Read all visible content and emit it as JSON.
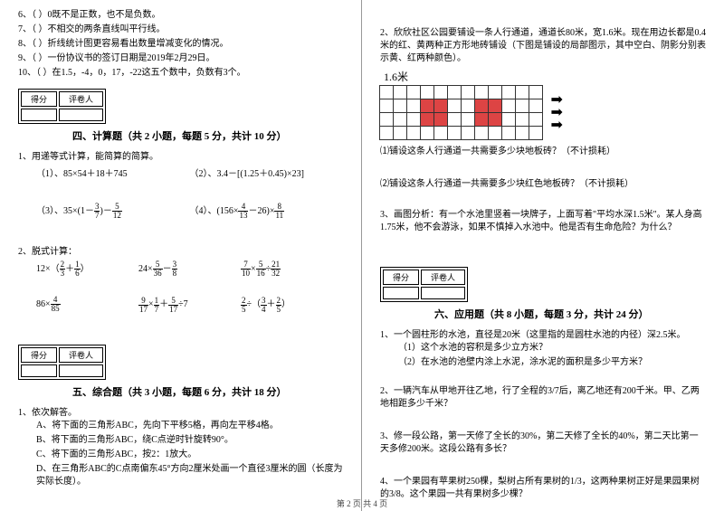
{
  "left": {
    "tf": [
      {
        "n": "6",
        "t": "（    ）0既不是正数，也不是负数。"
      },
      {
        "n": "7",
        "t": "（    ）不相交的两条直线叫平行线。"
      },
      {
        "n": "8",
        "t": "（    ）折线统计图更容易看出数量增减变化的情况。"
      },
      {
        "n": "9",
        "t": "（    ）一份协议书的签订日期是2019年2月29日。"
      },
      {
        "n": "10",
        "t": "（    ）在1.5，-4，0，17，-22这五个数中，负数有3个。"
      }
    ],
    "score_a": "得分",
    "score_b": "评卷人",
    "sec4": "四、计算题（共 2 小题，每题 5 分，共计 10 分）",
    "p1": "1、用递等式计算，能简算的简算。",
    "c1": "（1）、85×54＋18＋745",
    "c2": "（2）、3.4－[(1.25＋0.45)×23]",
    "p2": "2、脱式计算：",
    "sec5": "五、综合题（共 3 小题，每题 6 分，共计 18 分）",
    "q1": "1、依次解答。",
    "qa": "A、将下面的三角形ABC，先向下平移5格，再向左平移4格。",
    "qb": "B、将下面的三角形ABC，绕C点逆时针旋转90°。",
    "qc": "C、将下面的三角形ABC，按2：1放大。",
    "qd": "D、在三角形ABC的C点南偏东45°方向2厘米处画一个直径3厘米的圆（长度为实际长度）。"
  },
  "right": {
    "p2": "2、欣欣社区公园要铺设一条人行通道，通道长80米，宽1.6米。现在用边长都是0.4米的红、黄两种正方形地砖铺设（下图是铺设的局部图示，其中空白、阴影分别表示黄、红两种颜色）。",
    "lbl": "1.6米",
    "q2a": "⑴铺设这条人行通道一共需要多少块地板砖？（不计损耗）",
    "q2b": "⑵铺设这条人行通道一共需要多少块红色地板砖？（不计损耗）",
    "p3": "3、画图分析：有一个水池里竖着一块牌子，上面写着\"平均水深1.5米\"。某人身高1.75米，他不会游泳，如果不慎掉入水池中。他是否有生命危险？为什么？",
    "score_a": "得分",
    "score_b": "评卷人",
    "sec6": "六、应用题（共 8 小题，每题 3 分，共计 24 分）",
    "a1": "1、一个圆柱形的水池，直径是20米（这里指的是圆柱水池的内径）深2.5米。",
    "a1a": "（1）这个水池的容积是多少立方米？",
    "a1b": "（2）在水池的池壁内涂上水泥，涂水泥的面积是多少平方米？",
    "a2": "2、一辆汽车从甲地开往乙地，行了全程的3/7后，离乙地还有200千米。甲、乙两地相距多少千米？",
    "a3": "3、修一段公路，第一天修了全长的30%，第二天修了全长的40%，第二天比第一天多修200米。这段公路有多长？",
    "a4": "4、一个果园有苹果树250棵，梨树占所有果树的1/3，这两种果树正好是果园果树的3/8。这个果园一共有果树多少棵？"
  },
  "footer": "第 2 页 共 4 页",
  "colors": {
    "yellow": "#ffe04a",
    "red": "#d44"
  }
}
